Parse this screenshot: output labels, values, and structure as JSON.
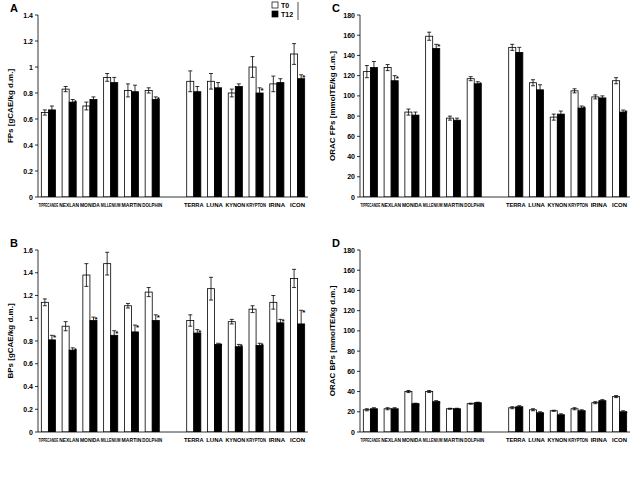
{
  "chart_data": [
    {
      "type": "bar",
      "title": "A",
      "ylabel": "FPs [gCAE/kg d.m.]",
      "categories": [
        "TIPPECANOE",
        "NEXLAN",
        "MONIDA",
        "MILLENIUM",
        "MARTIN",
        "DOLPHIN",
        null,
        "TERRA",
        "LUNA",
        "KYNON",
        "KRYPTON",
        "IRINA",
        "ICON"
      ],
      "series": [
        {
          "name": "T0",
          "color": "#ffffff",
          "values": [
            0.65,
            0.83,
            0.7,
            0.92,
            0.82,
            0.82,
            null,
            0.89,
            0.89,
            0.8,
            1.0,
            0.87,
            1.1
          ],
          "errors": [
            0.02,
            0.02,
            0.03,
            0.03,
            0.05,
            0.02,
            null,
            0.08,
            0.06,
            0.03,
            0.08,
            0.06,
            0.08
          ],
          "annotations": [
            null,
            null,
            null,
            null,
            null,
            null,
            null,
            null,
            null,
            null,
            null,
            null,
            null
          ]
        },
        {
          "name": "T12",
          "color": "#000000",
          "values": [
            0.67,
            0.73,
            0.75,
            0.88,
            0.81,
            0.75,
            null,
            0.81,
            0.84,
            0.85,
            0.8,
            0.88,
            0.91
          ],
          "errors": [
            0.03,
            0.02,
            0.02,
            0.04,
            0.05,
            0.02,
            null,
            0.04,
            0.04,
            0.02,
            0.04,
            0.03,
            0.03
          ],
          "annotations": [
            null,
            "*",
            null,
            null,
            null,
            "*",
            null,
            null,
            null,
            null,
            "*",
            null,
            "*"
          ]
        }
      ],
      "ylim": [
        0,
        1.4
      ],
      "yticks": [
        0,
        0.2,
        0.4,
        0.6,
        0.8,
        1,
        1.2,
        1.4
      ],
      "grid": false,
      "legend": "upper right"
    },
    {
      "type": "bar",
      "title": "B",
      "ylabel": "BPs [gCAE/kg d.m.]",
      "categories": [
        "TIPPECANOE",
        "NEXLAN",
        "MONIDA",
        "MILLENIUM",
        "MARTIN",
        "DOLPHIN",
        null,
        "TERRA",
        "LUNA",
        "KYNON",
        "KRYPTON",
        "IRINA",
        "ICON"
      ],
      "series": [
        {
          "name": "T0",
          "color": "#ffffff",
          "values": [
            1.14,
            0.93,
            1.38,
            1.48,
            1.11,
            1.23,
            null,
            0.98,
            1.26,
            0.97,
            1.08,
            1.14,
            1.35
          ],
          "errors": [
            0.03,
            0.04,
            0.1,
            0.1,
            0.02,
            0.04,
            null,
            0.05,
            0.1,
            0.02,
            0.03,
            0.06,
            0.08
          ],
          "annotations": [
            null,
            null,
            null,
            null,
            null,
            null,
            null,
            null,
            null,
            null,
            null,
            null,
            null
          ]
        },
        {
          "name": "T12",
          "color": "#000000",
          "values": [
            0.81,
            0.72,
            0.98,
            0.85,
            0.88,
            0.98,
            null,
            0.87,
            0.77,
            0.75,
            0.76,
            0.96,
            0.95
          ],
          "errors": [
            0.04,
            0.02,
            0.03,
            0.04,
            0.06,
            0.05,
            null,
            0.03,
            0.01,
            0.02,
            0.02,
            0.03,
            0.12
          ],
          "annotations": [
            "*",
            "*",
            "*",
            "*",
            "*",
            "*",
            null,
            "*",
            "*",
            "*",
            "*",
            "*",
            "*"
          ]
        }
      ],
      "ylim": [
        0,
        1.6
      ],
      "yticks": [
        0,
        0.2,
        0.4,
        0.6,
        0.8,
        1,
        1.2,
        1.4,
        1.6
      ],
      "grid": false
    },
    {
      "type": "bar",
      "title": "C",
      "ylabel": "ORAC FPs [mmolTE/kg d.m.]",
      "categories": [
        "TIPPECANOE",
        "NEXLAN",
        "MONIDA",
        "MILLENIUM",
        "MARTIN",
        "DOLPHIN",
        null,
        "TERRA",
        "LUNA",
        "KYNON",
        "KRYPTON",
        "IRINA",
        "ICON"
      ],
      "series": [
        {
          "name": "T0",
          "color": "#ffffff",
          "values": [
            124,
            128,
            84,
            159,
            78,
            117,
            null,
            148,
            113,
            79,
            105,
            99,
            115
          ],
          "errors": [
            6,
            3,
            3,
            4,
            2,
            2,
            null,
            3,
            3,
            3,
            2,
            2,
            3
          ],
          "annotations": [
            null,
            null,
            null,
            null,
            null,
            null,
            null,
            null,
            null,
            null,
            null,
            null,
            null
          ]
        },
        {
          "name": "T12",
          "color": "#000000",
          "values": [
            128,
            115,
            81,
            147,
            76,
            112,
            null,
            143,
            106,
            82,
            88,
            98,
            84
          ],
          "errors": [
            6,
            5,
            3,
            4,
            2,
            2,
            null,
            5,
            5,
            3,
            2,
            2,
            2
          ],
          "annotations": [
            null,
            "*",
            null,
            "*",
            null,
            "*",
            null,
            null,
            null,
            null,
            "*",
            null,
            "*"
          ]
        }
      ],
      "ylim": [
        0,
        180
      ],
      "yticks": [
        0,
        20,
        40,
        60,
        80,
        100,
        120,
        140,
        160,
        180
      ],
      "grid": false
    },
    {
      "type": "bar",
      "title": "D",
      "ylabel": "ORAC BPs [mmolTE/kg d.m.]",
      "categories": [
        "TIPPECANOE",
        "NEXLAN",
        "MONIDA",
        "MILLENIUM",
        "MARTIN",
        "DOLPHIN",
        null,
        "TERRA",
        "LUNA",
        "KYNON",
        "KRYPTON",
        "IRINA",
        "ICON"
      ],
      "series": [
        {
          "name": "T0",
          "color": "#ffffff",
          "values": [
            22,
            23,
            40,
            40,
            23,
            28,
            null,
            24,
            22,
            21,
            23,
            29,
            35
          ],
          "errors": [
            1,
            1,
            1,
            1,
            0.5,
            0.5,
            null,
            1,
            1,
            0.5,
            1,
            1,
            1
          ],
          "annotations": [
            null,
            null,
            null,
            null,
            null,
            null,
            null,
            null,
            null,
            null,
            null,
            null,
            null
          ]
        },
        {
          "name": "T12",
          "color": "#000000",
          "values": [
            23,
            23,
            28,
            30,
            23,
            29,
            null,
            25,
            19,
            17,
            21,
            31,
            20
          ],
          "errors": [
            1,
            1,
            0.5,
            1,
            0.5,
            0.5,
            null,
            1,
            1,
            1,
            1,
            1,
            1
          ],
          "annotations": [
            null,
            null,
            "*",
            "*",
            null,
            null,
            null,
            null,
            "*",
            "*",
            "*",
            null,
            "*"
          ]
        }
      ],
      "ylim": [
        0,
        180
      ],
      "yticks": [
        0,
        20,
        40,
        60,
        80,
        100,
        120,
        140,
        160,
        180
      ],
      "grid": false
    }
  ]
}
